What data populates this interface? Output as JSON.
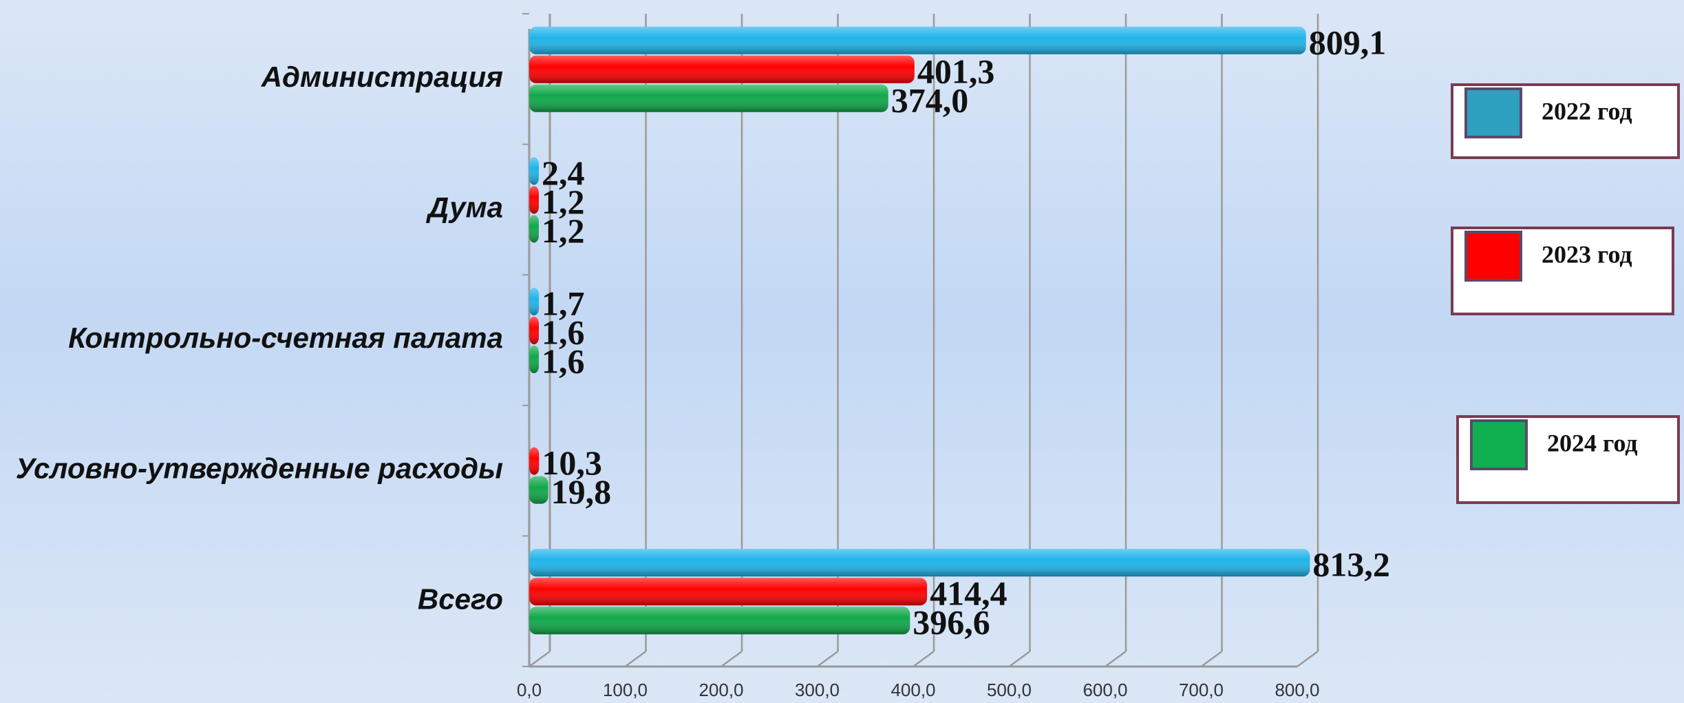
{
  "chart_data": {
    "type": "bar",
    "orientation": "horizontal",
    "categories": [
      "Администрация",
      "Дума",
      "Контрольно-счетная палата",
      "Условно-утвержденные расходы",
      "Всего"
    ],
    "series": [
      {
        "name": "2022 год",
        "color": "#1fb4ea",
        "legend_color": "#2ea0c0",
        "values": [
          809.1,
          2.4,
          1.7,
          null,
          813.2
        ],
        "value_labels": [
          "809,1",
          "2,4",
          "1,7",
          null,
          "813,2"
        ]
      },
      {
        "name": "2023 год",
        "color": "#ff0000",
        "legend_color": "#ff0000",
        "values": [
          401.3,
          1.2,
          1.6,
          10.3,
          414.4
        ],
        "value_labels": [
          "401,3",
          "1,2",
          "1,6",
          "10,3",
          "414,4"
        ]
      },
      {
        "name": "2024 год",
        "color": "#10a84a",
        "legend_color": "#10b050",
        "values": [
          374.0,
          1.2,
          1.6,
          19.8,
          396.6
        ],
        "value_labels": [
          "374,0",
          "1,2",
          "1,6",
          "19,8",
          "396,6"
        ]
      }
    ],
    "xlim": [
      0,
      800
    ],
    "xticks": [
      {
        "value": 0,
        "label": "0,0"
      },
      {
        "value": 100,
        "label": "100,0"
      },
      {
        "value": 200,
        "label": "200,0"
      },
      {
        "value": 300,
        "label": "300,0"
      },
      {
        "value": 400,
        "label": "400,0"
      },
      {
        "value": 500,
        "label": "500,0"
      },
      {
        "value": 600,
        "label": "600,0"
      },
      {
        "value": 700,
        "label": "700,0"
      },
      {
        "value": 800,
        "label": "800,0"
      }
    ],
    "grid": true,
    "legend": "right"
  }
}
